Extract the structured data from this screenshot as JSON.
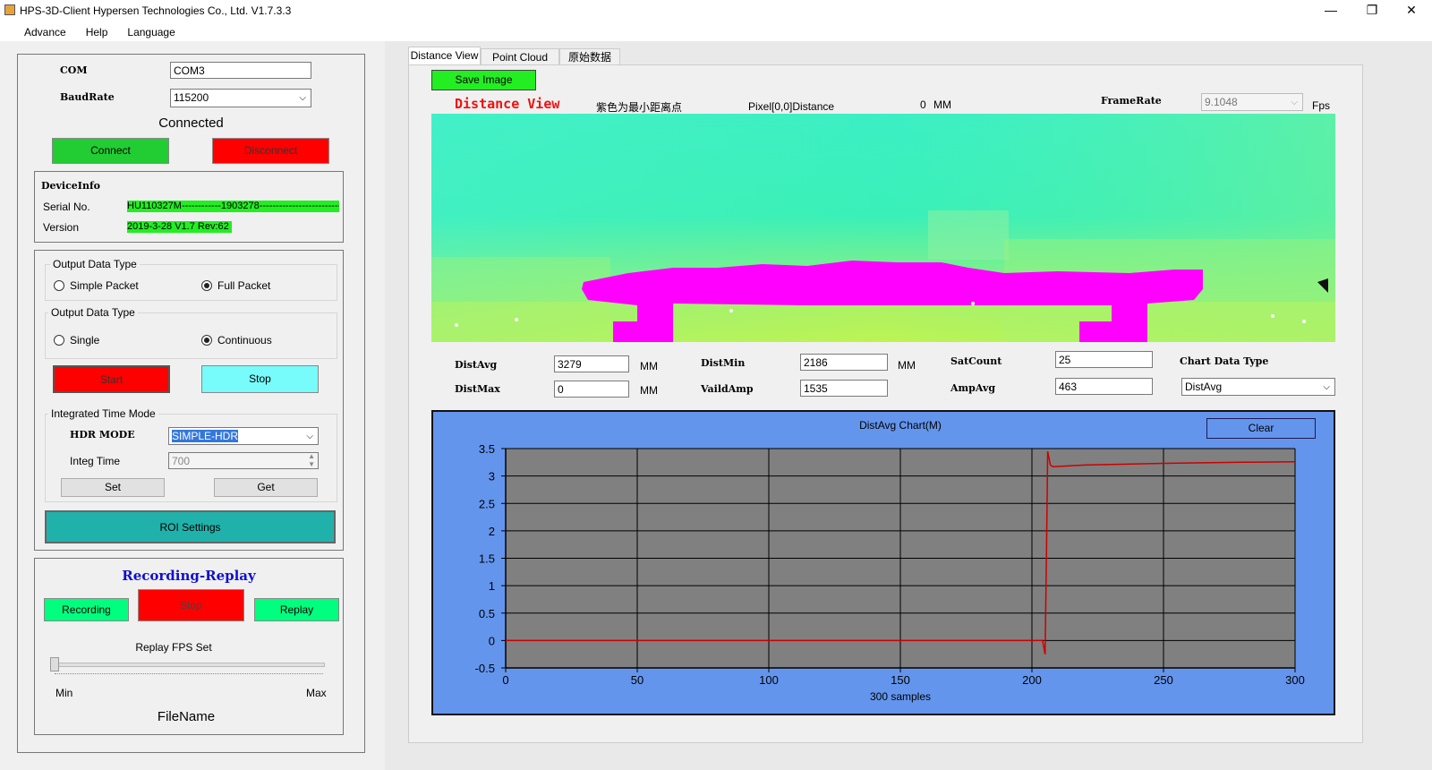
{
  "window": {
    "title": "HPS-3D-Client  Hypersen Technologies Co., Ltd.   V1.7.3.3",
    "minimize": "—",
    "maximize": "❐",
    "close": "✕"
  },
  "menu": [
    "Advance",
    "Help",
    "Language"
  ],
  "connection": {
    "com_label": "COM",
    "com_value": "COM3",
    "baud_label": "BaudRate",
    "baud_value": "115200",
    "status": "Connected",
    "connect": "Connect",
    "disconnect": "Disconnect"
  },
  "device_info": {
    "title": "DeviceInfo",
    "serial_label": "Serial No.",
    "serial_value": "HU110327M------------1903278---------------------------",
    "version_label": "Version",
    "version_value": "2019-3-28  V1.7 Rev:62"
  },
  "output1": {
    "title": "Output Data Type",
    "opt_a": "Simple Packet",
    "opt_b": "Full Packet"
  },
  "output2": {
    "title": "Output Data Type",
    "opt_a": "Single",
    "opt_b": "Continuous"
  },
  "run": {
    "start": "Start",
    "stop": "Stop"
  },
  "integ": {
    "title": "Integrated Time Mode",
    "hdr_label": "HDR MODE",
    "hdr_value": "SIMPLE-HDR",
    "time_label": "Integ Time",
    "time_value": "700",
    "set": "Set",
    "get": "Get"
  },
  "roi": "ROI Settings",
  "recording": {
    "title": "Recording-Replay",
    "record": "Recording",
    "stop": "Stop",
    "replay": "Replay",
    "fps_label": "Replay FPS Set",
    "min": "Min",
    "max": "Max",
    "filename": "FileName"
  },
  "tabs": [
    "Distance View",
    "Point Cloud View",
    "原始数据"
  ],
  "view": {
    "save_image": "Save Image",
    "title": "Distance View",
    "hint": "紫色为最小距离点",
    "pixel_label": "Pixel[0,0]Distance",
    "pixel_value": "0",
    "pixel_unit": "MM",
    "framerate_label": "FrameRate",
    "framerate_value": "9.1048",
    "fps_unit": "Fps"
  },
  "stats": {
    "distavg_label": "DistAvg",
    "distavg": "3279",
    "distmax_label": "DistMax",
    "distmax": "0",
    "distmin_label": "DistMin",
    "distmin": "2186",
    "vaildamp_label": "VaildAmp",
    "vaildamp": "1535",
    "satcount_label": "SatCount",
    "satcount": "25",
    "ampavg_label": "AmpAvg",
    "ampavg": "463",
    "unit": "MM",
    "chart_type_label": "Chart Data Type",
    "chart_type_value": "DistAvg"
  },
  "chart_panel": {
    "clear": "Clear"
  },
  "colors": {
    "connect": "#22cc33",
    "disconnect": "#ff0000",
    "stop_cyan": "#77fbfb",
    "roi": "#20b2aa",
    "chart_bg": "#6495ed",
    "plot_bg": "#808080",
    "line": "#cc0000"
  },
  "chart_data": {
    "type": "line",
    "title": "DistAvg Chart(M)",
    "xlabel": "300 samples",
    "ylabel": "",
    "xlim": [
      0,
      300
    ],
    "ylim": [
      -0.5,
      3.5
    ],
    "xticks": [
      0,
      50,
      100,
      150,
      200,
      250,
      300
    ],
    "yticks": [
      -0.5,
      0,
      0.5,
      1,
      1.5,
      2,
      2.5,
      3,
      3.5
    ],
    "series": [
      {
        "x": [
          0,
          50,
          100,
          150,
          200,
          204,
          205,
          205.5,
          206,
          207,
          208,
          220,
          250,
          280,
          300
        ],
        "y": [
          0,
          0,
          0,
          0,
          0,
          0,
          -0.25,
          1.5,
          3.45,
          3.2,
          3.17,
          3.2,
          3.23,
          3.25,
          3.26
        ]
      }
    ],
    "grid": true,
    "legend": "none"
  }
}
